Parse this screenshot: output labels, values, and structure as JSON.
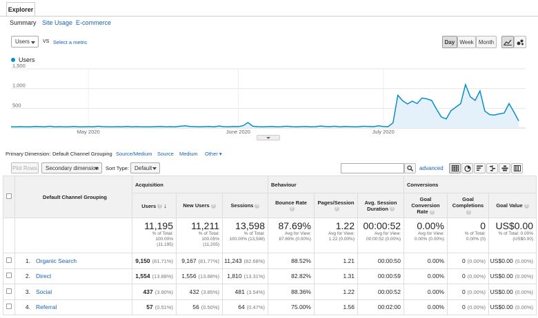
{
  "tabs": {
    "explorer": "Explorer",
    "sub": [
      "Summary",
      "Site Usage",
      "E-commerce"
    ]
  },
  "metric": {
    "selected": "Users",
    "vs": "VS",
    "select_link": "Select a metric"
  },
  "period_buttons": [
    "Day",
    "Week",
    "Month"
  ],
  "legend_label": "Users",
  "primary_dimension": {
    "label": "Primary Dimension:",
    "active": "Default Channel Grouping",
    "options": [
      "Source/Medium",
      "Source",
      "Medium",
      "Other"
    ]
  },
  "toolbar": {
    "plot_rows": "Plot Rows",
    "secondary": "Secondary dimension",
    "sort_label": "Sort Type:",
    "sort_value": "Default",
    "search_placeholder": "",
    "advanced": "advanced"
  },
  "chart_data": {
    "type": "area",
    "y_ticks": [
      "1,500",
      "1,000",
      "500"
    ],
    "x_ticks": [
      "May 2020",
      "June 2020",
      "July 2020"
    ],
    "ylim": [
      0,
      1500
    ],
    "start_date": "2020-04-15",
    "values": [
      30,
      30,
      35,
      30,
      30,
      40,
      35,
      30,
      45,
      30,
      35,
      30,
      30,
      40,
      30,
      30,
      35,
      30,
      45,
      35,
      30,
      30,
      35,
      30,
      40,
      30,
      35,
      30,
      30,
      30,
      35,
      40,
      30,
      35,
      30,
      45,
      55,
      40,
      35,
      30,
      35,
      40,
      30,
      50,
      35,
      30,
      40,
      35,
      60,
      140,
      45,
      35,
      30,
      35,
      40,
      30,
      35,
      45,
      35,
      30,
      35,
      40,
      30,
      35,
      50,
      40,
      35,
      45,
      30,
      40,
      35,
      30,
      35,
      45,
      40,
      35,
      55,
      40,
      35,
      130,
      830,
      690,
      610,
      680,
      620,
      760,
      740,
      700,
      480,
      280,
      230,
      440,
      530,
      620,
      1100,
      790,
      700,
      940,
      430,
      340,
      330,
      360,
      380,
      620,
      410,
      180
    ]
  },
  "table": {
    "dim_header": "Default Channel Grouping",
    "groups": [
      "Acquisition",
      "Behaviour",
      "Conversions"
    ],
    "columns": [
      "Users",
      "New Users",
      "Sessions",
      "Bounce Rate",
      "Pages/Session",
      "Avg. Session Duration",
      "Goal Conversion Rate",
      "Goal Completions",
      "Goal Value"
    ],
    "totals": [
      {
        "big": "11,195",
        "sm": [
          "% of Total:",
          "100.00%",
          "(11,195)"
        ]
      },
      {
        "big": "11,211",
        "sm": [
          "% of Total:",
          "100.05%",
          "(11,205)"
        ]
      },
      {
        "big": "13,598",
        "sm": [
          "% of Total:",
          "100.00% (13,598)"
        ]
      },
      {
        "big": "87.69%",
        "sm": [
          "Avg for View:",
          "87.69% (0.00%)"
        ]
      },
      {
        "big": "1.22",
        "sm": [
          "Avg for View:",
          "1.22 (0.00%)"
        ]
      },
      {
        "big": "00:00:52",
        "sm": [
          "Avg for View:",
          "00:00:52 (0.00%)"
        ]
      },
      {
        "big": "0.00%",
        "sm": [
          "Avg for View:",
          "0.00% (0.00%)"
        ]
      },
      {
        "big": "0",
        "sm": [
          "% of Total:",
          "0.00% (0)"
        ]
      },
      {
        "big": "US$0.00",
        "sm": [
          "% of Total: 0.00%",
          "(US$0.00)"
        ]
      }
    ],
    "rows": [
      {
        "idx": "1.",
        "name": "Organic Search",
        "users": "9,150",
        "users_pct": "(81.71%)",
        "new": "9,167",
        "new_pct": "(81.77%)",
        "sessions": "11,243",
        "sessions_pct": "(82.68%)",
        "bounce": "88.52%",
        "pages": "1.21",
        "duration": "00:00:50",
        "conv": "0.00%",
        "comp": "0",
        "comp_pct": "(0.00%)",
        "value": "US$0.00",
        "value_pct": "(0.00%)"
      },
      {
        "idx": "2.",
        "name": "Direct",
        "users": "1,554",
        "users_pct": "(13.88%)",
        "new": "1,556",
        "new_pct": "(13.88%)",
        "sessions": "1,810",
        "sessions_pct": "(13.31%)",
        "bounce": "82.82%",
        "pages": "1.31",
        "duration": "00:00:59",
        "conv": "0.00%",
        "comp": "0",
        "comp_pct": "(0.00%)",
        "value": "US$0.00",
        "value_pct": "(0.00%)"
      },
      {
        "idx": "3.",
        "name": "Social",
        "users": "437",
        "users_pct": "(3.90%)",
        "new": "432",
        "new_pct": "(3.85%)",
        "sessions": "481",
        "sessions_pct": "(3.54%)",
        "bounce": "88.36%",
        "pages": "1.22",
        "duration": "00:00:52",
        "conv": "0.00%",
        "comp": "0",
        "comp_pct": "(0.00%)",
        "value": "US$0.00",
        "value_pct": "(0.00%)"
      },
      {
        "idx": "4.",
        "name": "Referral",
        "users": "57",
        "users_pct": "(0.51%)",
        "new": "56",
        "new_pct": "(0.50%)",
        "sessions": "64",
        "sessions_pct": "(0.47%)",
        "bounce": "75.00%",
        "pages": "1.56",
        "duration": "00:02:00",
        "conv": "0.00%",
        "comp": "0",
        "comp_pct": "(0.00%)",
        "value": "US$0.00",
        "value_pct": "(0.00%)"
      }
    ]
  },
  "colors": {
    "accent": "#1a5fb4",
    "series": "#058dc7"
  }
}
